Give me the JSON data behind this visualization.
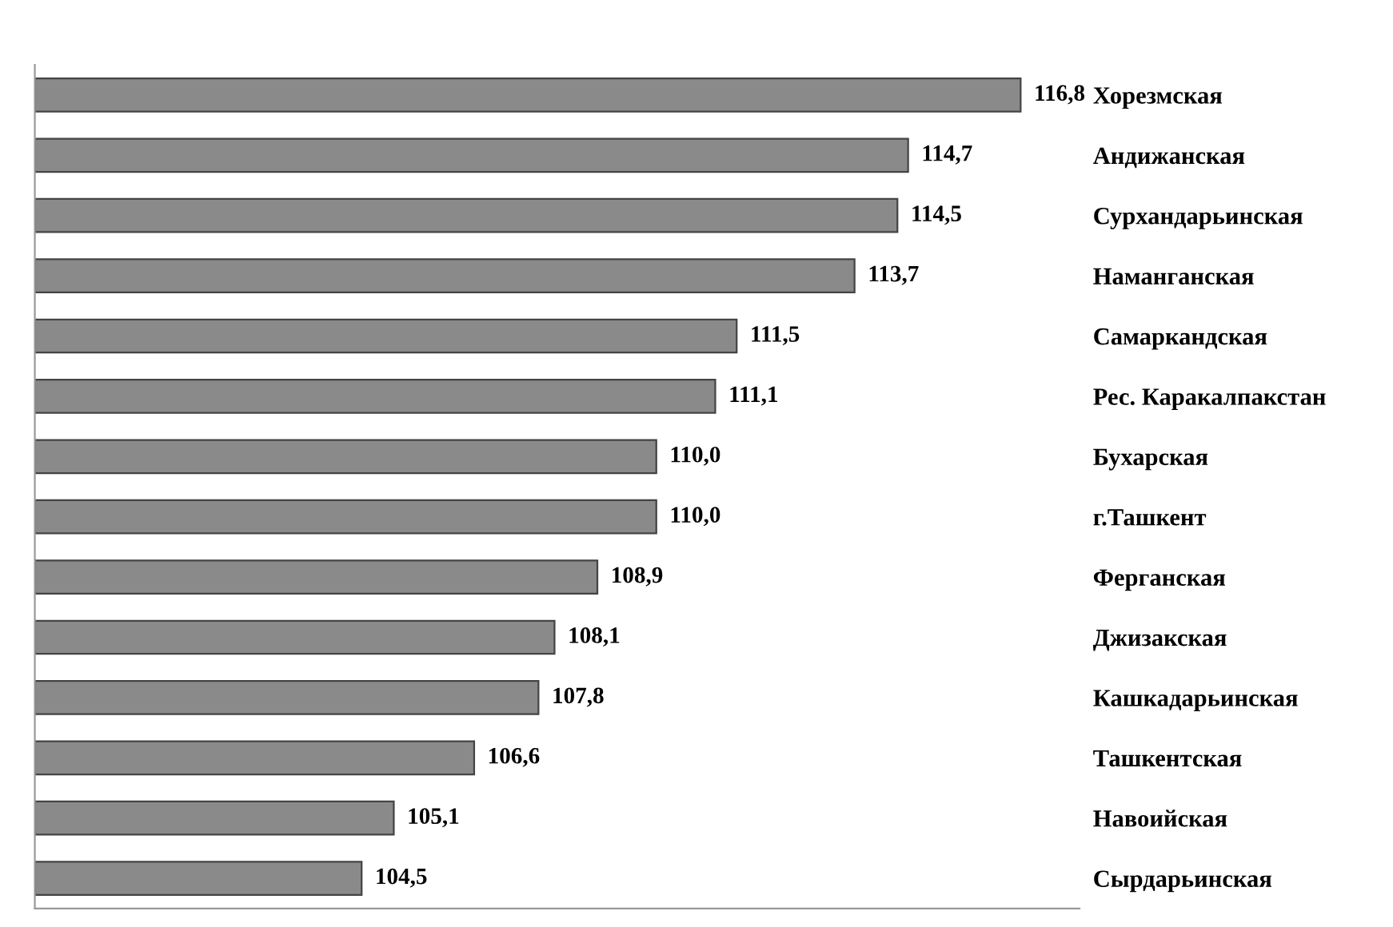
{
  "chart_data": {
    "type": "bar",
    "orientation": "horizontal",
    "categories": [
      "Хорезмская",
      "Андижанская",
      "Сурхандарьинская",
      "Наманганская",
      "Самаркандская",
      "Рес. Каракалпакстан",
      "Бухарская",
      "г.Ташкент",
      "Ферганская",
      "Джизакская",
      "Кашкадарьинская",
      "Ташкентская",
      "Навоийская",
      "Сырдарьинская"
    ],
    "values": [
      116.8,
      114.7,
      114.5,
      113.7,
      111.5,
      111.1,
      110.0,
      110.0,
      108.9,
      108.1,
      107.8,
      106.6,
      105.1,
      104.5
    ],
    "value_labels": [
      "116,8",
      "114,7",
      "114,5",
      "113,7",
      "111,5",
      "111,1",
      "110,0",
      "110,0",
      "108,9",
      "108,1",
      "107,8",
      "106,6",
      "105,1",
      "104,5"
    ],
    "color": "#8a8a8a",
    "xlim": [
      98.4,
      117.9
    ],
    "tick_labels": "y",
    "grid": false,
    "legend": false
  }
}
